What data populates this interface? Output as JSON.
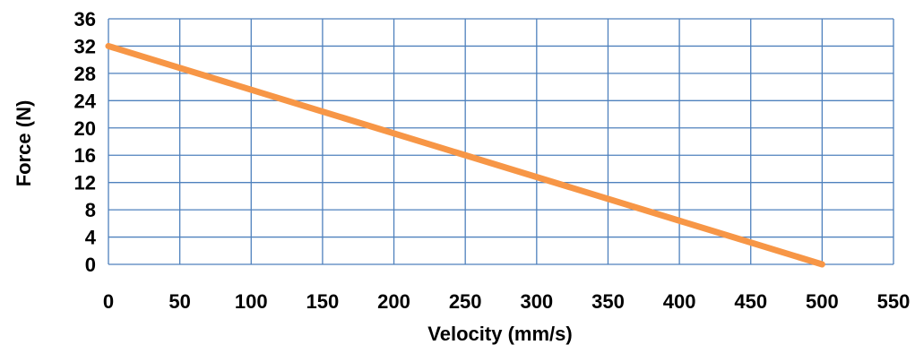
{
  "chart_data": {
    "type": "line",
    "title": "",
    "xlabel": "Velocity (mm/s)",
    "ylabel": "Force (N)",
    "xlim": [
      0,
      550
    ],
    "ylim": [
      0,
      36
    ],
    "x_ticks": [
      "0",
      "50",
      "100",
      "150",
      "200",
      "250",
      "300",
      "350",
      "400",
      "450",
      "500",
      "550"
    ],
    "y_ticks": [
      "0",
      "4",
      "8",
      "12",
      "16",
      "20",
      "24",
      "28",
      "32",
      "36"
    ],
    "grid": true,
    "legend": "none",
    "series": [
      {
        "color": "#F79646",
        "x": [
          0,
          500
        ],
        "y": [
          32,
          0
        ]
      }
    ],
    "colors": {
      "grid": "#4F81BD",
      "line": "#F79646"
    }
  }
}
